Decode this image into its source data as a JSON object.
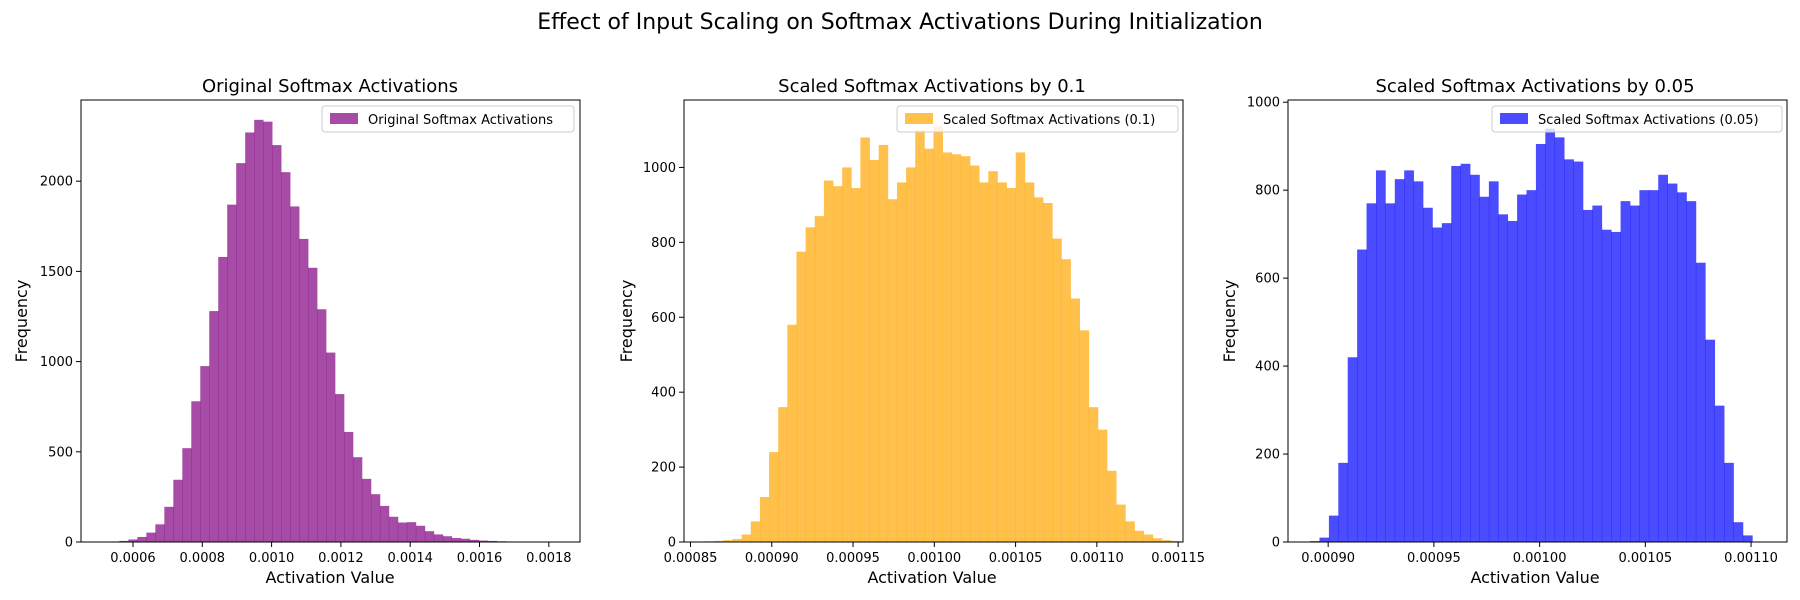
{
  "figure": {
    "suptitle": "Effect of Input Scaling on Softmax Activations During Initialization"
  },
  "chart_data": [
    {
      "type": "bar",
      "title": "Original Softmax Activations",
      "xlabel": "Activation Value",
      "ylabel": "Frequency",
      "xlim": [
        0.00045,
        0.00189
      ],
      "ylim": [
        0,
        2450
      ],
      "xticks": [
        0.0006,
        0.0008,
        0.001,
        0.0012,
        0.0014,
        0.0016,
        0.0018
      ],
      "xtick_labels": [
        "0.0006",
        "0.0008",
        "0.0010",
        "0.0012",
        "0.0014",
        "0.0016",
        "0.0018"
      ],
      "yticks": [
        0,
        500,
        1000,
        1500,
        2000
      ],
      "ytick_labels": [
        "0",
        "500",
        "1000",
        "1500",
        "2000"
      ],
      "legend": {
        "label": "Original Softmax Activations",
        "location": "upper right"
      },
      "color": "#800080",
      "alpha": 0.7,
      "bin_start": 0.000535,
      "bin_width": 2.592e-05,
      "values": [
        3,
        6,
        14,
        28,
        52,
        98,
        195,
        345,
        520,
        780,
        975,
        1280,
        1580,
        1870,
        2100,
        2270,
        2340,
        2330,
        2200,
        2050,
        1860,
        1680,
        1520,
        1290,
        1050,
        820,
        610,
        470,
        350,
        265,
        200,
        140,
        108,
        110,
        90,
        60,
        42,
        32,
        22,
        18,
        12,
        8,
        6,
        4,
        3,
        2,
        1,
        1,
        1,
        1
      ]
    },
    {
      "type": "bar",
      "title": "Scaled Softmax Activations by 0.1",
      "xlabel": "Activation Value",
      "ylabel": "Frequency",
      "xlim": [
        0.000846,
        0.001153
      ],
      "ylim": [
        0,
        1180
      ],
      "xticks": [
        0.00085,
        0.0009,
        0.00095,
        0.001,
        0.00105,
        0.0011,
        0.00115
      ],
      "xtick_labels": [
        "0.00085",
        "0.00090",
        "0.00095",
        "0.00100",
        "0.00105",
        "0.00110",
        "0.00115"
      ],
      "yticks": [
        0,
        200,
        400,
        600,
        800,
        1000
      ],
      "ytick_labels": [
        "0",
        "200",
        "400",
        "600",
        "800",
        "1000"
      ],
      "legend": {
        "label": "Scaled Softmax Activations (0.1)",
        "location": "upper right"
      },
      "color": "#FFA500",
      "alpha": 0.7,
      "bin_start": 0.000859,
      "bin_width": 5.62e-06,
      "values": [
        2,
        3,
        5,
        8,
        20,
        55,
        120,
        240,
        360,
        580,
        775,
        840,
        870,
        965,
        950,
        1000,
        945,
        1080,
        1020,
        1060,
        915,
        960,
        1000,
        1100,
        1050,
        1110,
        1040,
        1035,
        1030,
        1005,
        960,
        990,
        960,
        945,
        1040,
        960,
        920,
        905,
        810,
        755,
        650,
        565,
        360,
        300,
        190,
        100,
        55,
        30,
        20,
        10,
        5,
        3
      ]
    },
    {
      "type": "bar",
      "title": "Scaled Softmax Activations by 0.05",
      "xlabel": "Activation Value",
      "ylabel": "Frequency",
      "xlim": [
        0.000881,
        0.001117
      ],
      "ylim": [
        0,
        1005
      ],
      "xticks": [
        0.0009,
        0.00095,
        0.001,
        0.00105,
        0.0011
      ],
      "xtick_labels": [
        "0.00090",
        "0.00095",
        "0.00100",
        "0.00105",
        "0.00110"
      ],
      "yticks": [
        0,
        200,
        400,
        600,
        800,
        1000
      ],
      "ytick_labels": [
        "0",
        "200",
        "400",
        "600",
        "800",
        "1000"
      ],
      "legend": {
        "label": "Scaled Softmax Activations (0.05)",
        "location": "upper right"
      },
      "color": "#0000FF",
      "alpha": 0.7,
      "bin_start": 0.000887,
      "bin_width": 4.45e-06,
      "values": [
        1,
        2,
        10,
        60,
        180,
        420,
        665,
        770,
        845,
        770,
        825,
        845,
        820,
        760,
        715,
        725,
        855,
        860,
        835,
        785,
        820,
        745,
        730,
        790,
        800,
        905,
        940,
        920,
        870,
        865,
        755,
        765,
        710,
        705,
        775,
        765,
        800,
        800,
        835,
        815,
        795,
        775,
        635,
        460,
        310,
        180,
        45,
        15
      ]
    }
  ]
}
